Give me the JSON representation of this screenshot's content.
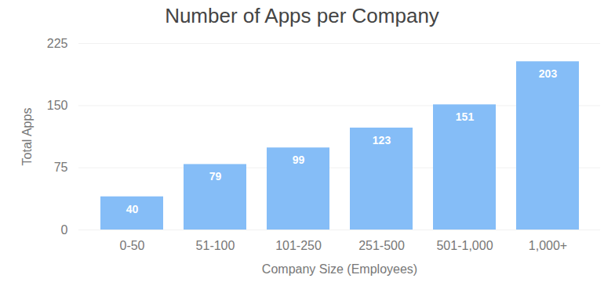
{
  "chart_data": {
    "type": "bar",
    "title": "Number of Apps per Company",
    "x_label": "Company Size (Employees)",
    "y_label": "Total Apps",
    "categories": [
      "0-50",
      "51-100",
      "101-250",
      "251-500",
      "501-1,000",
      "1,000+"
    ],
    "values": [
      40,
      79,
      99,
      123,
      151,
      203
    ],
    "color": "#85bdf7",
    "ylim": [
      0,
      225
    ],
    "yticks": [
      0,
      75,
      150,
      225
    ],
    "grid": true,
    "data_labels": true
  }
}
